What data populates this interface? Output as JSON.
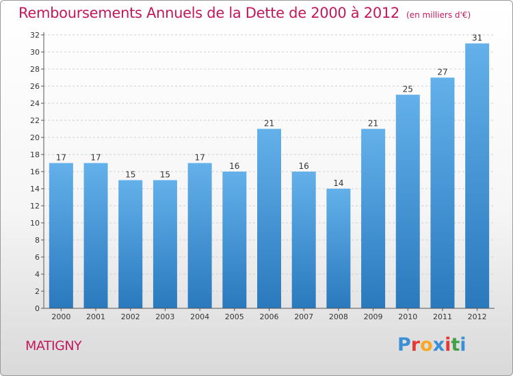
{
  "header": {
    "title": "Remboursements Annuels de la Dette de 2000 à 2012",
    "subtitle": "(en milliers d'€)"
  },
  "footer": {
    "location": "MATIGNY",
    "logo_text": "Proxiti",
    "logo_colors": [
      "#3a8fd6",
      "#e53935",
      "#f9a825",
      "#3a8fd6",
      "#e53935",
      "#43a047",
      "#3a8fd6"
    ]
  },
  "colors": {
    "bar_light": "#63b0ea",
    "bar_dark": "#2a79bd",
    "title": "#c2185b",
    "axis_text": "#333333"
  },
  "chart_data": {
    "type": "bar",
    "categories": [
      "2000",
      "2001",
      "2002",
      "2003",
      "2004",
      "2005",
      "2006",
      "2007",
      "2008",
      "2009",
      "2010",
      "2011",
      "2012"
    ],
    "values": [
      17,
      17,
      15,
      15,
      17,
      16,
      21,
      16,
      14,
      21,
      25,
      27,
      31
    ],
    "title": "Remboursements Annuels de la Dette de 2000 à 2012",
    "xlabel": "",
    "ylabel": "",
    "ylim": [
      0,
      32
    ],
    "yticks": [
      0,
      2,
      4,
      6,
      8,
      10,
      12,
      14,
      16,
      18,
      20,
      22,
      24,
      26,
      28,
      30,
      32
    ],
    "grid": true,
    "legend": "none"
  }
}
